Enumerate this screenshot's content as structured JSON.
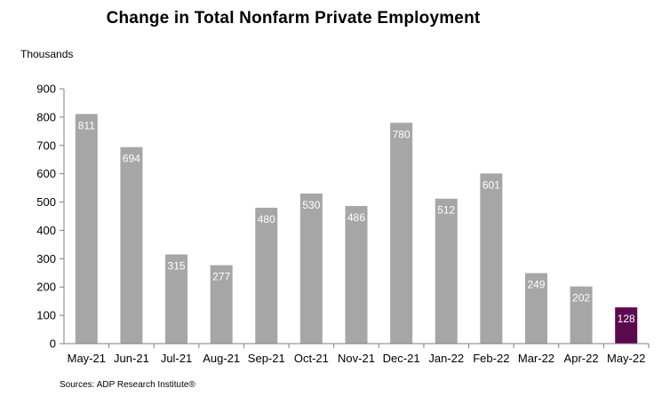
{
  "chart_data": {
    "type": "bar",
    "title": "Change in Total Nonfarm Private Employment",
    "ylabel": "Thousands",
    "xlabel": "",
    "source": "Sources: ADP Research Institute®",
    "categories": [
      "May-21",
      "Jun-21",
      "Jul-21",
      "Aug-21",
      "Sep-21",
      "Oct-21",
      "Nov-21",
      "Dec-21",
      "Jan-22",
      "Feb-22",
      "Mar-22",
      "Apr-22",
      "May-22"
    ],
    "values": [
      811,
      694,
      315,
      277,
      480,
      530,
      486,
      780,
      512,
      601,
      249,
      202,
      128
    ],
    "data_labels": [
      "811",
      "694",
      "315",
      "277",
      "480",
      "530",
      "486",
      "780",
      "512",
      "601",
      "249",
      "202",
      "128"
    ],
    "ylim": [
      0,
      900
    ],
    "yticks": [
      0,
      100,
      200,
      300,
      400,
      500,
      600,
      700,
      800,
      900
    ],
    "grid": false,
    "legend": "none",
    "colors": {
      "bar": "#a6a6a6",
      "highlight_bar": "#5b0a4f",
      "highlight_category": "May-22",
      "axis": "#7f7f7f",
      "label_text": "#ffffff"
    }
  }
}
